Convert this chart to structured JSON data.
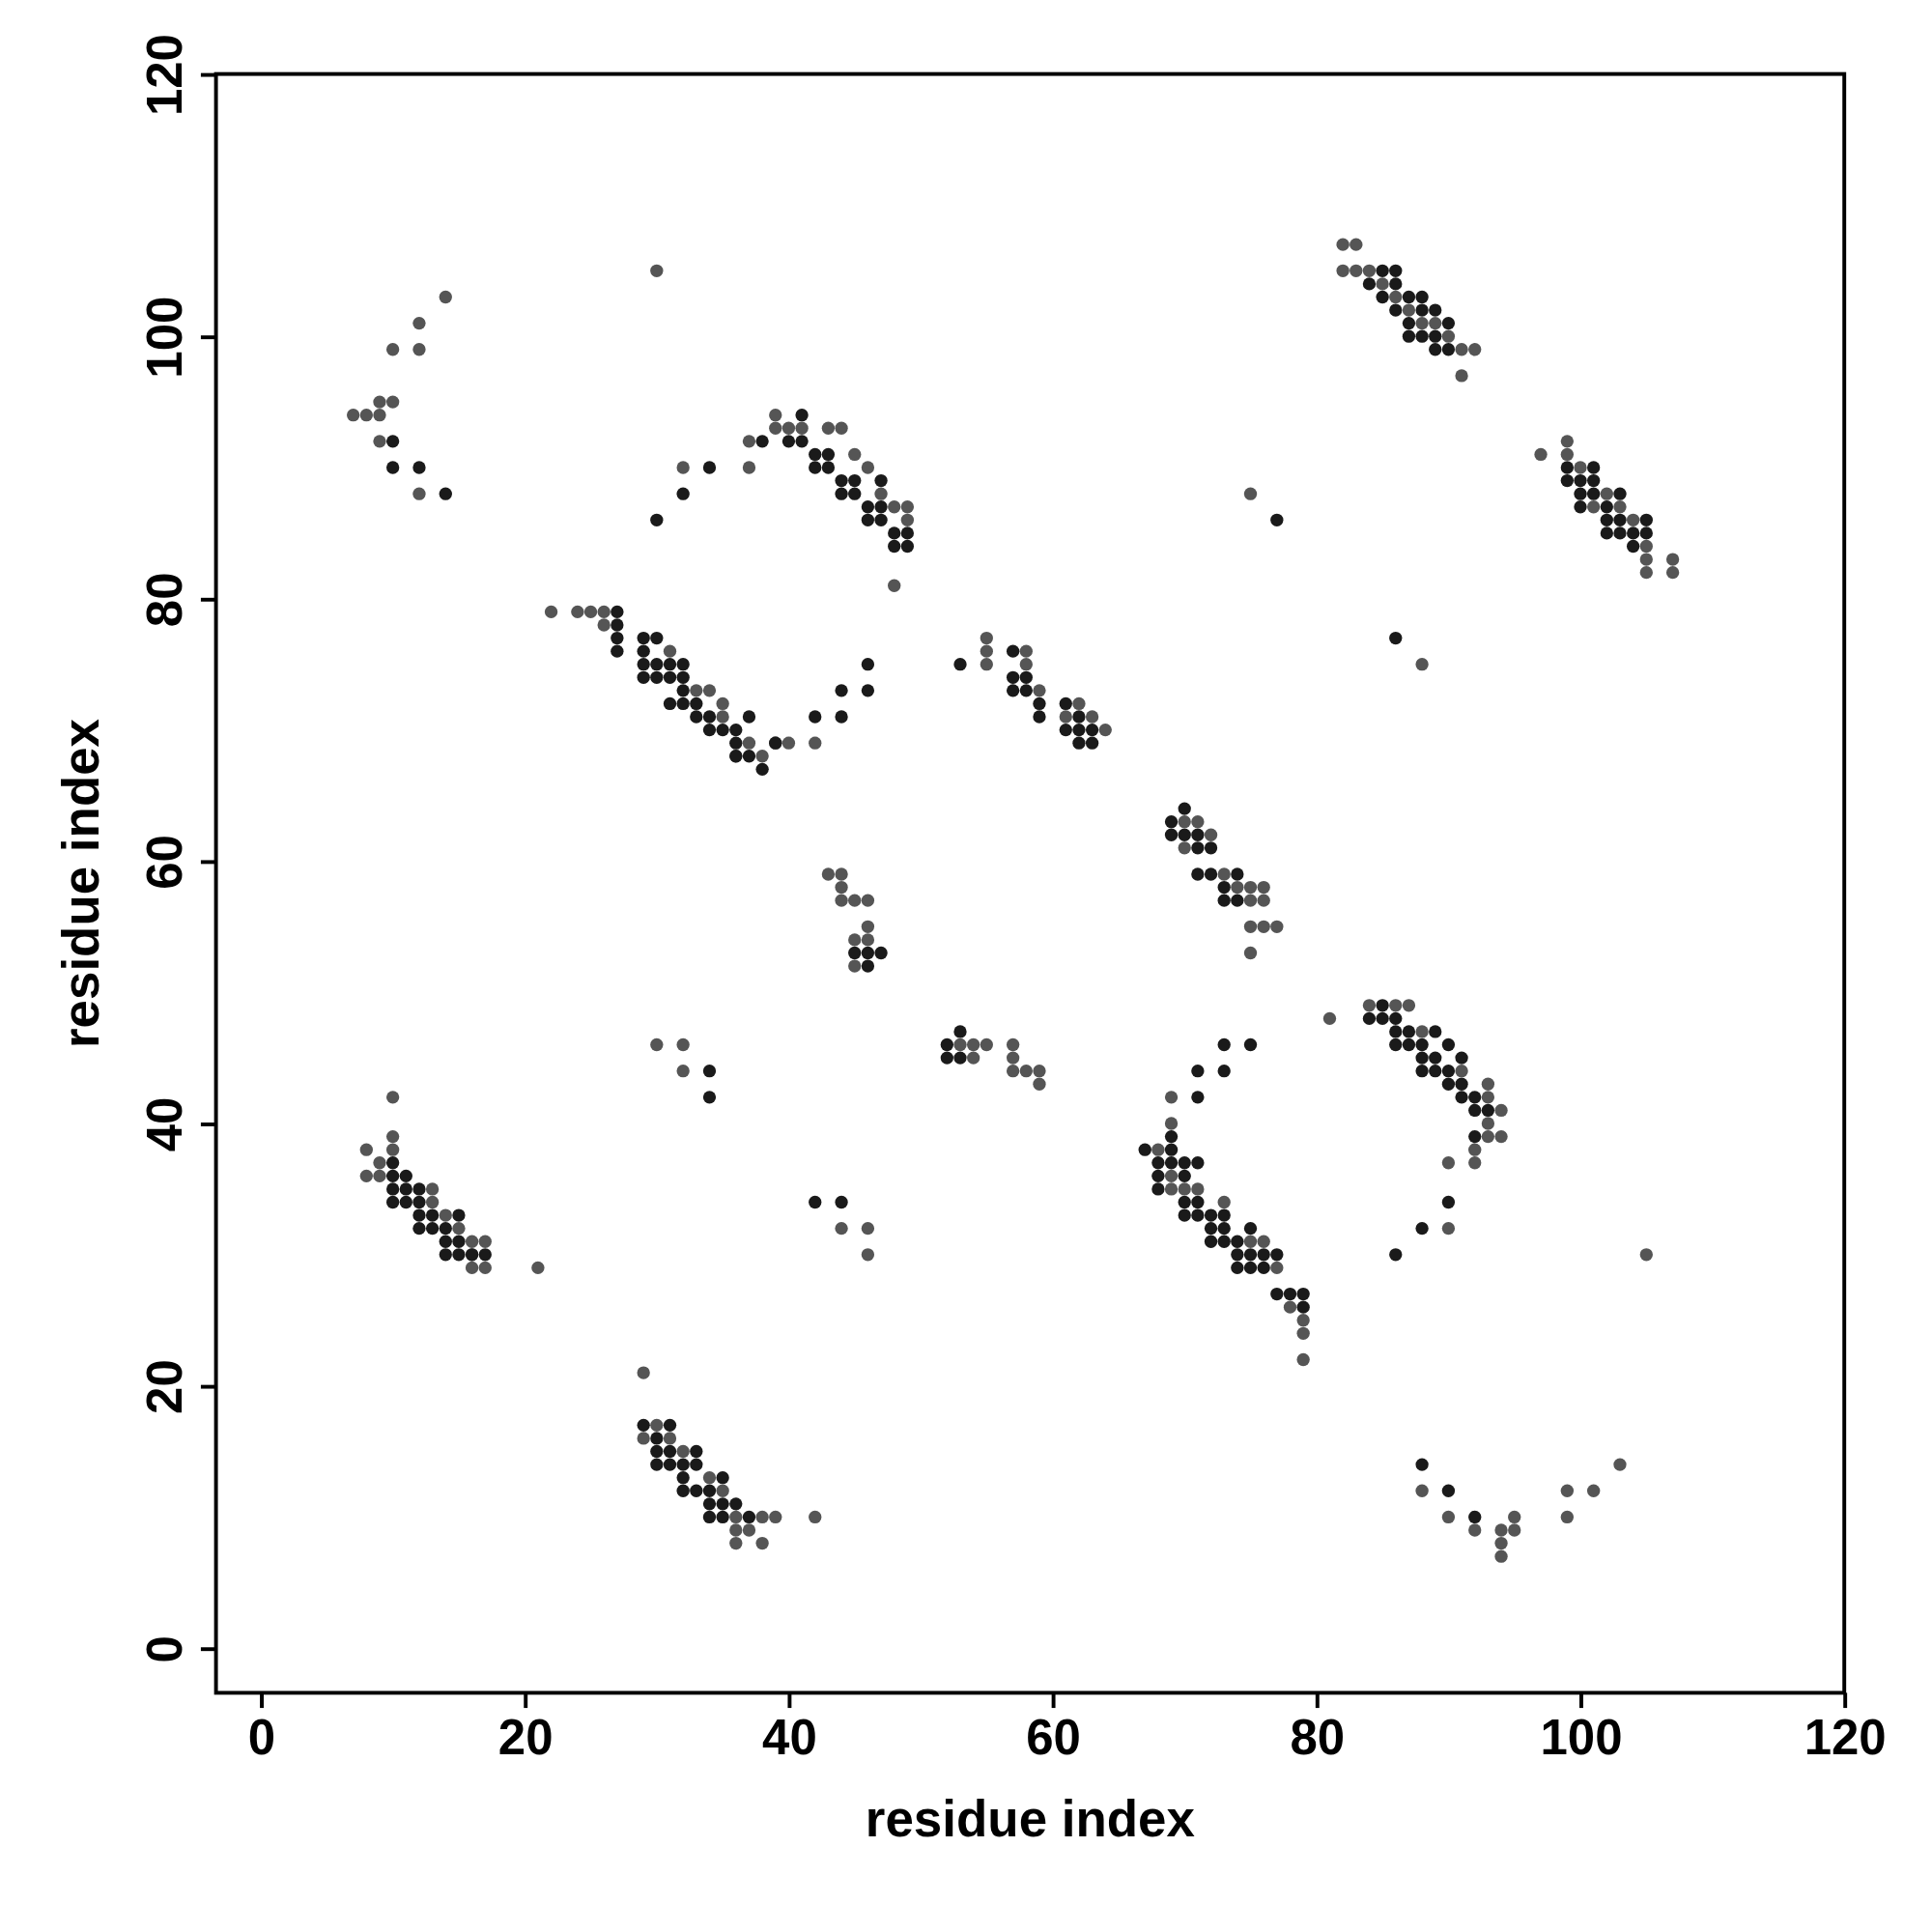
{
  "chart_data": {
    "type": "scatter",
    "xlabel": "residue index",
    "ylabel": "residue index",
    "xlim": [
      -3.4,
      120
    ],
    "ylim": [
      -3.4,
      120
    ],
    "xticks": [
      0,
      20,
      40,
      60,
      80,
      100,
      120
    ],
    "yticks": [
      0,
      20,
      40,
      60,
      80,
      100,
      120
    ],
    "grid": false,
    "marker": "circle",
    "series": [
      {
        "color": "#555555",
        "x": [
          7,
          8,
          9,
          9,
          10,
          10,
          12,
          12,
          14,
          12,
          9,
          30,
          32,
          37,
          37,
          39,
          39,
          40,
          41,
          43,
          44,
          45,
          46,
          47,
          48,
          49,
          49,
          48,
          22,
          24,
          25,
          26,
          26,
          31,
          33,
          34,
          35,
          35,
          36,
          37,
          38,
          39,
          40,
          42,
          55,
          55,
          55,
          58,
          58,
          59,
          61,
          62,
          63,
          64,
          70,
          70,
          71,
          72,
          73,
          74,
          75,
          75,
          76,
          76,
          76,
          77,
          75,
          75,
          43,
          44,
          44,
          44,
          45,
          46,
          45,
          46,
          46,
          45,
          54,
          55,
          57,
          57,
          57,
          58,
          59,
          59,
          54,
          53,
          30,
          32,
          32,
          44,
          46,
          46,
          10,
          8,
          10,
          10,
          9,
          8,
          9,
          13,
          13,
          14,
          15,
          16,
          16,
          17,
          17,
          16,
          21,
          29,
          29,
          30,
          31,
          32,
          34,
          35,
          36,
          36,
          36,
          37,
          38,
          38,
          39,
          42,
          68,
          69,
          69,
          70,
          69,
          69,
          71,
          73,
          75,
          76,
          78,
          79,
          79,
          79,
          77,
          81,
          84,
          86,
          87,
          88,
          91,
          93,
          93,
          94,
          93,
          93,
          94,
          92,
          92,
          90,
          90,
          88,
          90,
          92,
          94,
          94,
          94,
          95,
          95,
          99,
          99,
          101,
          103,
          82,
          83,
          82,
          83,
          84,
          85,
          86,
          87,
          88,
          89,
          90,
          91,
          92,
          91,
          97,
          99,
          99,
          100,
          101,
          102,
          103,
          104,
          105,
          105,
          105,
          107,
          107,
          75,
          88,
          105
        ],
        "values": [
          94,
          94,
          94,
          95,
          95,
          99,
          99,
          101,
          103,
          88,
          92,
          105,
          90,
          90,
          92,
          94,
          93,
          93,
          93,
          93,
          93,
          91,
          90,
          88,
          87,
          87,
          86,
          81,
          79,
          79,
          79,
          79,
          78,
          76,
          73,
          73,
          72,
          71,
          68,
          69,
          68,
          69,
          69,
          69,
          77,
          76,
          75,
          76,
          75,
          73,
          71,
          72,
          71,
          70,
          63,
          61,
          63,
          62,
          59,
          58,
          58,
          57,
          58,
          57,
          55,
          55,
          55,
          53,
          59,
          59,
          58,
          57,
          57,
          57,
          54,
          55,
          54,
          52,
          46,
          46,
          46,
          45,
          44,
          44,
          44,
          43,
          45,
          46,
          46,
          46,
          44,
          32,
          32,
          30,
          42,
          38,
          39,
          38,
          37,
          36,
          36,
          35,
          34,
          33,
          32,
          31,
          30,
          31,
          29,
          29,
          29,
          21,
          16,
          17,
          16,
          15,
          13,
          12,
          10,
          9,
          8,
          9,
          10,
          8,
          10,
          10,
          38,
          36,
          35,
          35,
          42,
          40,
          35,
          34,
          31,
          31,
          26,
          25,
          24,
          22,
          29,
          48,
          49,
          49,
          49,
          47,
          44,
          43,
          42,
          41,
          40,
          39,
          39,
          38,
          37,
          37,
          32,
          12,
          10,
          9,
          9,
          8,
          7,
          10,
          9,
          12,
          10,
          12,
          14,
          107,
          107,
          105,
          105,
          105,
          104,
          103,
          102,
          101,
          101,
          100,
          99,
          99,
          97,
          91,
          92,
          91,
          90,
          87,
          88,
          87,
          86,
          84,
          83,
          82,
          83,
          82,
          88,
          75,
          30
        ]
      },
      {
        "color": "#1a1a1a",
        "x": [
          10,
          10,
          12,
          14,
          30,
          32,
          34,
          38,
          40,
          41,
          41,
          42,
          42,
          43,
          43,
          44,
          44,
          45,
          45,
          46,
          46,
          47,
          47,
          47,
          48,
          48,
          49,
          49,
          27,
          27,
          27,
          27,
          29,
          29,
          29,
          29,
          30,
          30,
          30,
          31,
          31,
          31,
          32,
          32,
          32,
          32,
          33,
          33,
          34,
          34,
          35,
          36,
          36,
          36,
          37,
          37,
          38,
          39,
          42,
          44,
          44,
          46,
          46,
          53,
          57,
          57,
          57,
          58,
          58,
          59,
          59,
          61,
          61,
          62,
          62,
          62,
          63,
          63,
          69,
          69,
          70,
          70,
          71,
          71,
          72,
          71,
          72,
          73,
          73,
          74,
          74,
          45,
          46,
          46,
          47,
          52,
          52,
          53,
          53,
          34,
          34,
          42,
          44,
          10,
          10,
          10,
          10,
          11,
          11,
          11,
          12,
          12,
          12,
          12,
          13,
          13,
          14,
          14,
          14,
          15,
          15,
          15,
          16,
          17,
          29,
          30,
          30,
          30,
          31,
          31,
          31,
          32,
          32,
          32,
          33,
          33,
          33,
          34,
          34,
          34,
          35,
          35,
          35,
          36,
          37,
          67,
          68,
          68,
          68,
          69,
          69,
          69,
          70,
          70,
          70,
          70,
          71,
          71,
          71,
          72,
          72,
          72,
          73,
          73,
          73,
          74,
          74,
          74,
          75,
          75,
          75,
          76,
          76,
          77,
          77,
          78,
          79,
          79,
          71,
          71,
          73,
          73,
          75,
          84,
          85,
          85,
          86,
          86,
          86,
          87,
          87,
          88,
          88,
          88,
          89,
          89,
          89,
          90,
          90,
          90,
          91,
          91,
          91,
          92,
          92,
          93,
          92,
          90,
          88,
          86,
          88,
          90,
          92,
          84,
          85,
          85,
          86,
          86,
          86,
          87,
          87,
          87,
          88,
          88,
          88,
          89,
          89,
          89,
          90,
          90,
          99,
          99,
          100,
          100,
          100,
          101,
          101,
          101,
          102,
          102,
          102,
          103,
          103,
          103,
          104,
          104,
          105,
          105,
          77,
          86
        ],
        "values": [
          92,
          90,
          90,
          88,
          86,
          88,
          90,
          92,
          92,
          94,
          92,
          91,
          90,
          91,
          90,
          89,
          88,
          89,
          88,
          87,
          86,
          89,
          86,
          87,
          85,
          84,
          84,
          85,
          79,
          78,
          77,
          76,
          77,
          76,
          75,
          74,
          77,
          75,
          74,
          74,
          75,
          72,
          75,
          74,
          73,
          72,
          72,
          71,
          71,
          70,
          70,
          70,
          69,
          68,
          71,
          68,
          67,
          69,
          71,
          73,
          71,
          73,
          75,
          75,
          76,
          74,
          73,
          74,
          73,
          72,
          71,
          72,
          70,
          71,
          70,
          69,
          69,
          70,
          63,
          62,
          64,
          62,
          62,
          61,
          61,
          59,
          59,
          58,
          57,
          59,
          57,
          53,
          53,
          52,
          53,
          46,
          45,
          47,
          45,
          44,
          42,
          34,
          34,
          37,
          36,
          35,
          34,
          36,
          35,
          34,
          35,
          34,
          33,
          32,
          33,
          32,
          32,
          31,
          30,
          33,
          31,
          30,
          30,
          30,
          17,
          16,
          15,
          14,
          17,
          15,
          14,
          14,
          13,
          12,
          15,
          14,
          12,
          12,
          11,
          10,
          13,
          11,
          10,
          11,
          10,
          38,
          37,
          36,
          35,
          39,
          38,
          37,
          37,
          36,
          34,
          33,
          37,
          34,
          33,
          33,
          32,
          31,
          33,
          32,
          31,
          31,
          30,
          29,
          32,
          30,
          29,
          30,
          29,
          30,
          27,
          27,
          27,
          26,
          42,
          44,
          44,
          46,
          46,
          48,
          49,
          48,
          48,
          47,
          46,
          47,
          46,
          46,
          45,
          44,
          47,
          45,
          44,
          46,
          44,
          43,
          45,
          43,
          42,
          42,
          41,
          41,
          39,
          34,
          32,
          30,
          14,
          12,
          10,
          104,
          105,
          103,
          105,
          104,
          102,
          103,
          101,
          100,
          103,
          102,
          100,
          102,
          100,
          99,
          101,
          99,
          90,
          89,
          89,
          88,
          87,
          90,
          89,
          88,
          87,
          86,
          85,
          88,
          86,
          85,
          85,
          84,
          86,
          85,
          86,
          77
        ]
      }
    ]
  }
}
